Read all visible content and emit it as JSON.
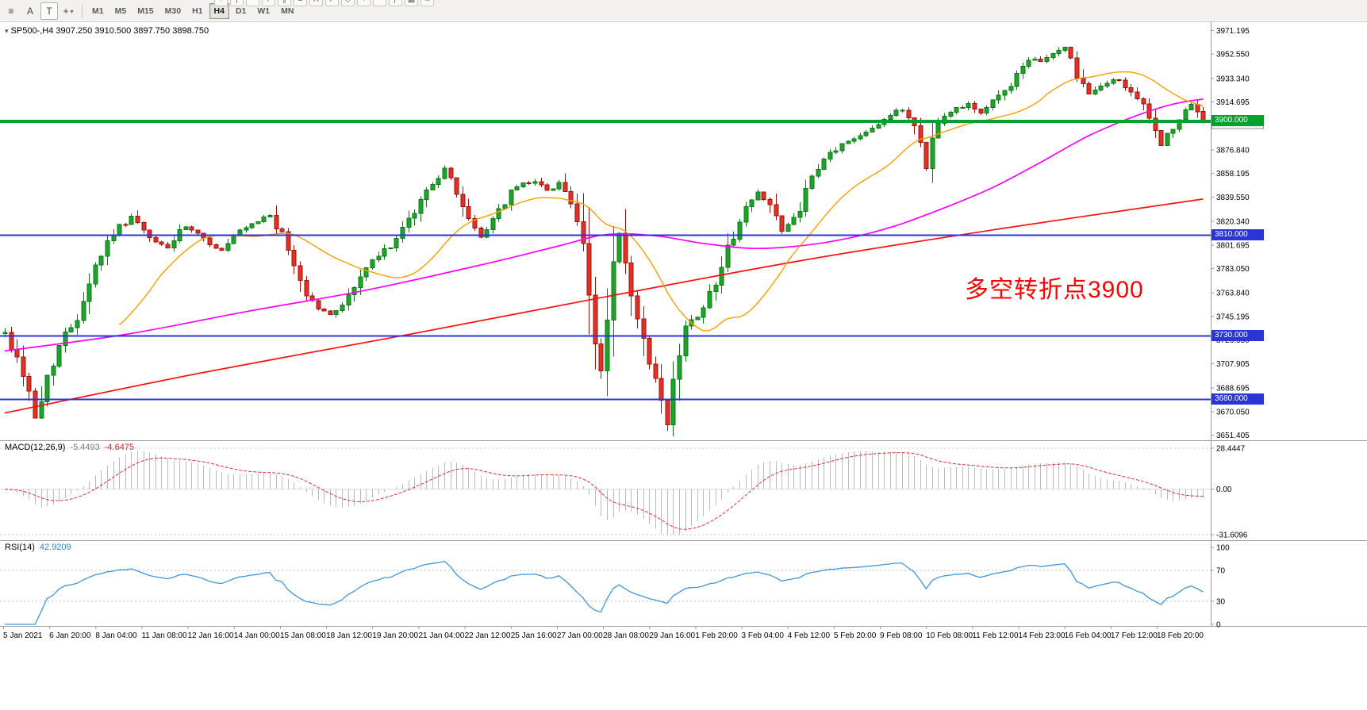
{
  "colors": {
    "candle_up": "#1ea32b",
    "candle_up_border": "#0a7a14",
    "candle_down": "#e23128",
    "candle_down_border": "#a01208",
    "ma_fast_orange": "#ff9d00",
    "ma_mid_magenta": "#ff00ff",
    "ma_slow_red": "#ff1010",
    "level_green": "#00a12c",
    "level_blue": "#2a35d8",
    "macd_histogram": "#b9b9b9",
    "macd_signal_red": "#e03030",
    "rsi_blue": "#3f96dc",
    "axis_text": "#000000",
    "separator": "#9c9c9c",
    "toolbar_bg": "#f2f1ef",
    "annotation_red": "#ff0000"
  },
  "toolbar": {
    "left": [
      {
        "name": "charts-menu-icon",
        "glyph": "≡"
      },
      {
        "name": "annotate-text-button",
        "glyph": "A"
      },
      {
        "name": "text-label-button",
        "glyph": "T",
        "boxed": true
      },
      {
        "name": "crosshair-tool-button",
        "glyph": "+",
        "dropdown": true
      }
    ],
    "timeframes": [
      {
        "label": "M1"
      },
      {
        "label": "M5"
      },
      {
        "label": "M15"
      },
      {
        "label": "M30"
      },
      {
        "label": "H1"
      },
      {
        "label": "H4",
        "active": true
      },
      {
        "label": "D1"
      },
      {
        "label": "W1"
      },
      {
        "label": "MN"
      }
    ],
    "tool_icons": [
      {
        "name": "crosshair-icon",
        "glyph": "+"
      },
      {
        "name": "vertical-line-icon",
        "glyph": "|"
      },
      {
        "name": "horizontal-line-icon",
        "glyph": "—"
      },
      {
        "name": "trendline-icon",
        "glyph": "/"
      },
      {
        "name": "channel-icon",
        "glyph": "∥"
      },
      {
        "name": "fibonacci-icon",
        "glyph": "≡"
      },
      {
        "name": "text-icon",
        "glyph": "A"
      },
      {
        "name": "arrow-icon",
        "glyph": "↗"
      },
      {
        "name": "shapes-icon",
        "glyph": "◇"
      },
      {
        "name": "zoom-in-icon",
        "glyph": "+"
      },
      {
        "name": "zoom-out-icon",
        "glyph": "−"
      },
      {
        "name": "indicators-icon",
        "glyph": "ƒ"
      },
      {
        "name": "templates-icon",
        "glyph": "▦"
      },
      {
        "name": "chart-shift-icon",
        "glyph": "→"
      }
    ]
  },
  "chart": {
    "title": {
      "symbol": "SP500-,H4",
      "ohlc": "3907.250 3910.500 3897.750 3898.750"
    },
    "annotation": {
      "text": "多空转折点3900",
      "color": "#ff0000"
    },
    "bid_badge": "3898.750",
    "levels": [
      {
        "price": 3900,
        "label": "3900.000",
        "color": "#00a12c",
        "style": "green",
        "width": 3
      },
      {
        "price": 3810,
        "label": "3810.000",
        "color": "#2a35d8",
        "style": "blue",
        "width": 2
      },
      {
        "price": 3730,
        "label": "3730.000",
        "color": "#2a35d8",
        "style": "blue",
        "width": 2
      },
      {
        "price": 3680,
        "label": "3680.000",
        "color": "#2a35d8",
        "style": "blue",
        "width": 2
      }
    ],
    "y_ticks": [
      "3971.195",
      "3952.550",
      "3933.340",
      "3914.695",
      "3895.950",
      "3876.840",
      "3858.195",
      "3839.550",
      "3820.340",
      "3801.695",
      "3783.050",
      "3763.840",
      "3745.195",
      "3726.550",
      "3707.905",
      "3688.695",
      "3670.050",
      "3651.405"
    ],
    "x_labels": [
      "5 Jan 2021",
      "6 Jan 20:00",
      "8 Jan 04:00",
      "11 Jan 08:00",
      "12 Jan 16:00",
      "14 Jan 00:00",
      "15 Jan 08:00",
      "18 Jan 12:00",
      "19 Jan 20:00",
      "21 Jan 04:00",
      "22 Jan 12:00",
      "25 Jan 16:00",
      "27 Jan 00:00",
      "28 Jan 08:00",
      "29 Jan 16:00",
      "1 Feb 20:00",
      "3 Feb 04:00",
      "4 Feb 12:00",
      "5 Feb 20:00",
      "9 Feb 08:00",
      "10 Feb 08:00",
      "11 Feb 12:00",
      "14 Feb 23:00",
      "16 Feb 04:00",
      "17 Feb 12:00",
      "18 Feb 20:00"
    ]
  },
  "macd": {
    "label": "MACD(12,26,9)",
    "value_main": "-5.4493",
    "value_signal": "-4.6475",
    "ticks": [
      "28.4447",
      "0.00",
      "-31.6096"
    ]
  },
  "rsi": {
    "label": "RSI(14)",
    "value": "42.9209",
    "ticks": [
      "100",
      "70",
      "30",
      "0"
    ]
  },
  "chart_data": {
    "type": "candlestick",
    "symbol": "SP500-",
    "timeframe": "H4",
    "bars": 200,
    "current_ohlc": {
      "open": 3907.25,
      "high": 3910.5,
      "low": 3897.75,
      "close": 3898.75
    },
    "price_axis": {
      "min": 3648.6,
      "max": 3976.5
    },
    "horizontal_levels": [
      3900,
      3810,
      3730,
      3680
    ],
    "price_waypoints": [
      [
        0,
        3732
      ],
      [
        2,
        3712
      ],
      [
        4,
        3688
      ],
      [
        5,
        3664
      ],
      [
        6,
        3678
      ],
      [
        7,
        3698
      ],
      [
        9,
        3722
      ],
      [
        12,
        3746
      ],
      [
        15,
        3786
      ],
      [
        18,
        3812
      ],
      [
        21,
        3824
      ],
      [
        24,
        3806
      ],
      [
        27,
        3800
      ],
      [
        30,
        3816
      ],
      [
        33,
        3806
      ],
      [
        36,
        3797
      ],
      [
        39,
        3812
      ],
      [
        42,
        3820
      ],
      [
        44,
        3826
      ],
      [
        46,
        3808
      ],
      [
        48,
        3786
      ],
      [
        50,
        3763
      ],
      [
        52,
        3752
      ],
      [
        54,
        3746
      ],
      [
        57,
        3761
      ],
      [
        60,
        3784
      ],
      [
        63,
        3797
      ],
      [
        66,
        3812
      ],
      [
        69,
        3836
      ],
      [
        71,
        3852
      ],
      [
        73,
        3861
      ],
      [
        75,
        3845
      ],
      [
        77,
        3820
      ],
      [
        79,
        3808
      ],
      [
        82,
        3830
      ],
      [
        85,
        3848
      ],
      [
        88,
        3853
      ],
      [
        90,
        3844
      ],
      [
        92,
        3852
      ],
      [
        94,
        3835
      ],
      [
        96,
        3799
      ],
      [
        97,
        3762
      ],
      [
        98,
        3722
      ],
      [
        99,
        3704
      ],
      [
        100,
        3742
      ],
      [
        101,
        3788
      ],
      [
        102,
        3810
      ],
      [
        103,
        3786
      ],
      [
        104,
        3758
      ],
      [
        105,
        3744
      ],
      [
        106,
        3725
      ],
      [
        107,
        3706
      ],
      [
        108,
        3692
      ],
      [
        109,
        3678
      ],
      [
        110,
        3658
      ],
      [
        111,
        3692
      ],
      [
        112,
        3718
      ],
      [
        113,
        3736
      ],
      [
        115,
        3748
      ],
      [
        117,
        3762
      ],
      [
        119,
        3786
      ],
      [
        121,
        3810
      ],
      [
        123,
        3830
      ],
      [
        125,
        3843
      ],
      [
        127,
        3836
      ],
      [
        129,
        3812
      ],
      [
        131,
        3821
      ],
      [
        133,
        3843
      ],
      [
        135,
        3861
      ],
      [
        137,
        3874
      ],
      [
        139,
        3881
      ],
      [
        141,
        3886
      ],
      [
        143,
        3892
      ],
      [
        145,
        3898
      ],
      [
        147,
        3904
      ],
      [
        149,
        3909
      ],
      [
        151,
        3896
      ],
      [
        152,
        3884
      ],
      [
        153,
        3862
      ],
      [
        154,
        3890
      ],
      [
        156,
        3903
      ],
      [
        158,
        3910
      ],
      [
        160,
        3914
      ],
      [
        162,
        3906
      ],
      [
        164,
        3915
      ],
      [
        166,
        3924
      ],
      [
        168,
        3936
      ],
      [
        170,
        3946
      ],
      [
        172,
        3948
      ],
      [
        174,
        3952
      ],
      [
        176,
        3959
      ],
      [
        178,
        3936
      ],
      [
        180,
        3920
      ],
      [
        182,
        3927
      ],
      [
        184,
        3933
      ],
      [
        186,
        3928
      ],
      [
        188,
        3918
      ],
      [
        190,
        3900
      ],
      [
        192,
        3882
      ],
      [
        194,
        3893
      ],
      [
        196,
        3906
      ],
      [
        197,
        3912
      ],
      [
        198,
        3906
      ],
      [
        199,
        3898.75
      ]
    ],
    "ma_red_waypoints": [
      [
        0,
        3669
      ],
      [
        33,
        3701
      ],
      [
        66,
        3730
      ],
      [
        100,
        3761
      ],
      [
        133,
        3790
      ],
      [
        166,
        3815
      ],
      [
        199,
        3838
      ]
    ],
    "ma_magenta_waypoints": [
      [
        0,
        3718
      ],
      [
        20,
        3731
      ],
      [
        40,
        3749
      ],
      [
        60,
        3766
      ],
      [
        80,
        3787
      ],
      [
        92,
        3801
      ],
      [
        100,
        3810
      ],
      [
        108,
        3809
      ],
      [
        116,
        3803
      ],
      [
        124,
        3799
      ],
      [
        132,
        3801
      ],
      [
        140,
        3807
      ],
      [
        148,
        3817
      ],
      [
        156,
        3831
      ],
      [
        164,
        3847
      ],
      [
        172,
        3867
      ],
      [
        180,
        3888
      ],
      [
        188,
        3904
      ],
      [
        194,
        3913
      ],
      [
        199,
        3917
      ]
    ],
    "ma_orange_period": 20,
    "macd": {
      "fast": 12,
      "slow": 26,
      "signal": 9,
      "current": -5.4493,
      "current_signal": -4.6475,
      "axis_max": 28.4447,
      "axis_min": -31.6096
    },
    "rsi": {
      "period": 14,
      "current": 42.9209,
      "levels": [
        70,
        30
      ],
      "axis_max": 100,
      "axis_min": 0
    }
  }
}
